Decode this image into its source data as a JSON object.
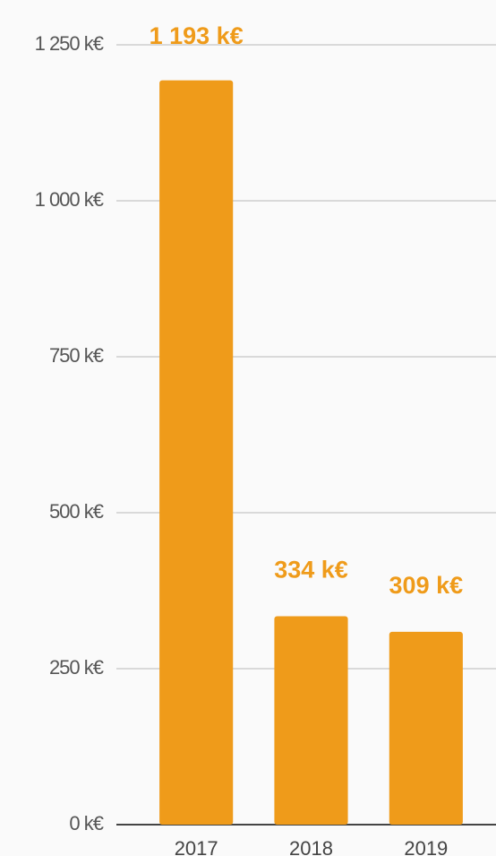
{
  "chart_data": {
    "type": "bar",
    "categories": [
      "2017",
      "2018",
      "2019"
    ],
    "values": [
      1193,
      334,
      309
    ],
    "value_labels": [
      "1 193 k€",
      "334 k€",
      "309 k€"
    ],
    "color": "#ef9b1a",
    "ylim": [
      0,
      1250
    ],
    "yticks": [
      {
        "value": 0,
        "label": "0 k€"
      },
      {
        "value": 250,
        "label": "250 k€"
      },
      {
        "value": 500,
        "label": "500 k€"
      },
      {
        "value": 750,
        "label": "750 k€"
      },
      {
        "value": 1000,
        "label": "1 000 k€"
      },
      {
        "value": 1250,
        "label": "1 250 k€"
      }
    ],
    "grid": true
  }
}
